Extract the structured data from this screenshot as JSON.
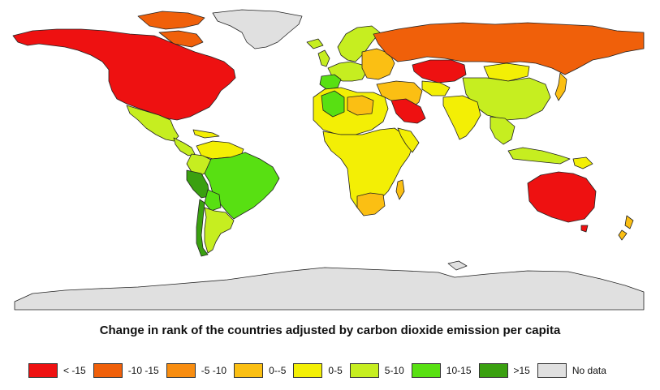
{
  "title": "Change in rank of the countries adjusted by carbon dioxide emission per capita",
  "legend": [
    {
      "label": "< -15",
      "color": "#ee1111"
    },
    {
      "label": "-10  -15",
      "color": "#f0600a"
    },
    {
      "label": "-5 -10",
      "color": "#f88d10"
    },
    {
      "label": "0--5",
      "color": "#fbbf13"
    },
    {
      "label": "0-5",
      "color": "#f3ef05"
    },
    {
      "label": "5-10",
      "color": "#c6ee20"
    },
    {
      "label": "10-15",
      "color": "#58e012"
    },
    {
      "label": ">15",
      "color": "#3aa010"
    },
    {
      "label": "No data",
      "color": "#e0e0e0"
    }
  ],
  "map_regions": [
    {
      "name": "north-america",
      "category": "< -15"
    },
    {
      "name": "canadian-arctic",
      "category": "-10  -15"
    },
    {
      "name": "greenland",
      "category": "No data"
    },
    {
      "name": "mexico",
      "category": "5-10"
    },
    {
      "name": "central-america",
      "category": "5-10"
    },
    {
      "name": "caribbean",
      "category": "0-5"
    },
    {
      "name": "venezuela",
      "category": "0-5"
    },
    {
      "name": "colombia",
      "category": "5-10"
    },
    {
      "name": "peru",
      "category": ">15"
    },
    {
      "name": "brazil",
      "category": "10-15"
    },
    {
      "name": "bolivia",
      "category": "10-15"
    },
    {
      "name": "argentina",
      "category": "5-10"
    },
    {
      "name": "chile",
      "category": ">15"
    },
    {
      "name": "western-europe",
      "category": "5-10"
    },
    {
      "name": "iberia",
      "category": "10-15"
    },
    {
      "name": "scandinavia",
      "category": "5-10"
    },
    {
      "name": "eastern-europe",
      "category": "0--5"
    },
    {
      "name": "russia",
      "category": "-10  -15"
    },
    {
      "name": "kazakhstan",
      "category": "< -15"
    },
    {
      "name": "middle-east",
      "category": "0--5"
    },
    {
      "name": "saudi-arabia",
      "category": "< -15"
    },
    {
      "name": "north-africa",
      "category": "0-5"
    },
    {
      "name": "algeria",
      "category": "10-15"
    },
    {
      "name": "libya",
      "category": "0--5"
    },
    {
      "name": "sub-saharan-africa",
      "category": "0-5"
    },
    {
      "name": "southern-africa",
      "category": "0--5"
    },
    {
      "name": "madagascar",
      "category": "0--5"
    },
    {
      "name": "central-asia",
      "category": "0-5"
    },
    {
      "name": "china",
      "category": "5-10"
    },
    {
      "name": "mongolia",
      "category": "0-5"
    },
    {
      "name": "india",
      "category": "0-5"
    },
    {
      "name": "southeast-asia",
      "category": "5-10"
    },
    {
      "name": "japan",
      "category": "0--5"
    },
    {
      "name": "indonesia",
      "category": "5-10"
    },
    {
      "name": "papua-new-guinea",
      "category": "0-5"
    },
    {
      "name": "australia",
      "category": "< -15"
    },
    {
      "name": "new-zealand",
      "category": "0--5"
    },
    {
      "name": "antarctica",
      "category": "No data"
    }
  ]
}
